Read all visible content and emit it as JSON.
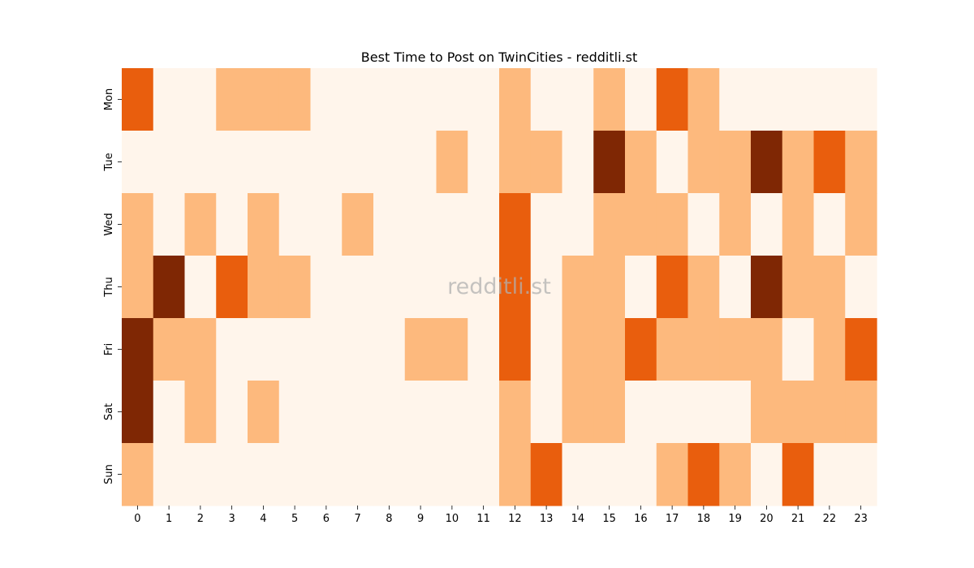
{
  "chart_data": {
    "type": "heatmap",
    "title": "Best Time to Post on TwinCities - redditli.st",
    "watermark": "redditli.st",
    "xlabel": "",
    "ylabel": "",
    "x": [
      "0",
      "1",
      "2",
      "3",
      "4",
      "5",
      "6",
      "7",
      "8",
      "9",
      "10",
      "11",
      "12",
      "13",
      "14",
      "15",
      "16",
      "17",
      "18",
      "19",
      "20",
      "21",
      "22",
      "23"
    ],
    "y": [
      "Mon",
      "Tue",
      "Wed",
      "Thu",
      "Fri",
      "Sat",
      "Sun"
    ],
    "colormap": {
      "0": "#fff5eb",
      "1": "#fdb97d",
      "2": "#e95e0d",
      "3": "#7f2704"
    },
    "values": [
      [
        2,
        0,
        0,
        1,
        1,
        1,
        0,
        0,
        0,
        0,
        0,
        0,
        1,
        0,
        0,
        1,
        0,
        2,
        1,
        0,
        0,
        0,
        0,
        0
      ],
      [
        0,
        0,
        0,
        0,
        0,
        0,
        0,
        0,
        0,
        0,
        1,
        0,
        1,
        1,
        0,
        3,
        1,
        0,
        1,
        1,
        3,
        1,
        2,
        1
      ],
      [
        1,
        0,
        1,
        0,
        1,
        0,
        0,
        1,
        0,
        0,
        0,
        0,
        2,
        0,
        0,
        1,
        1,
        1,
        0,
        1,
        0,
        1,
        0,
        1
      ],
      [
        1,
        3,
        0,
        2,
        1,
        1,
        0,
        0,
        0,
        0,
        0,
        0,
        2,
        0,
        1,
        1,
        0,
        2,
        1,
        0,
        3,
        1,
        1,
        0
      ],
      [
        3,
        1,
        1,
        0,
        0,
        0,
        0,
        0,
        0,
        1,
        1,
        0,
        2,
        0,
        1,
        1,
        2,
        1,
        1,
        1,
        1,
        0,
        1,
        2
      ],
      [
        3,
        0,
        1,
        0,
        1,
        0,
        0,
        0,
        0,
        0,
        0,
        0,
        1,
        0,
        1,
        1,
        0,
        0,
        0,
        0,
        1,
        1,
        1,
        1
      ],
      [
        1,
        0,
        0,
        0,
        0,
        0,
        0,
        0,
        0,
        0,
        0,
        0,
        1,
        2,
        0,
        0,
        0,
        1,
        2,
        1,
        0,
        2,
        0,
        0
      ]
    ]
  }
}
